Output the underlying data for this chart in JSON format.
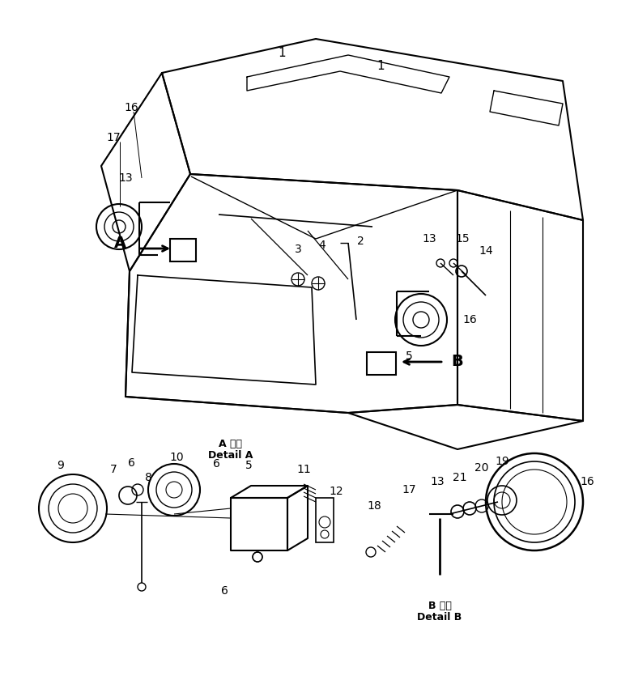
{
  "fig_width": 7.62,
  "fig_height": 8.61,
  "dpi": 100,
  "bg_color": "#ffffff",
  "line_color": "#000000",
  "detail_a_label_line1": "A 詳細",
  "detail_a_label_line2": "Detail A",
  "detail_b_label_line1": "B 詳細",
  "detail_b_label_line2": "Detail B"
}
